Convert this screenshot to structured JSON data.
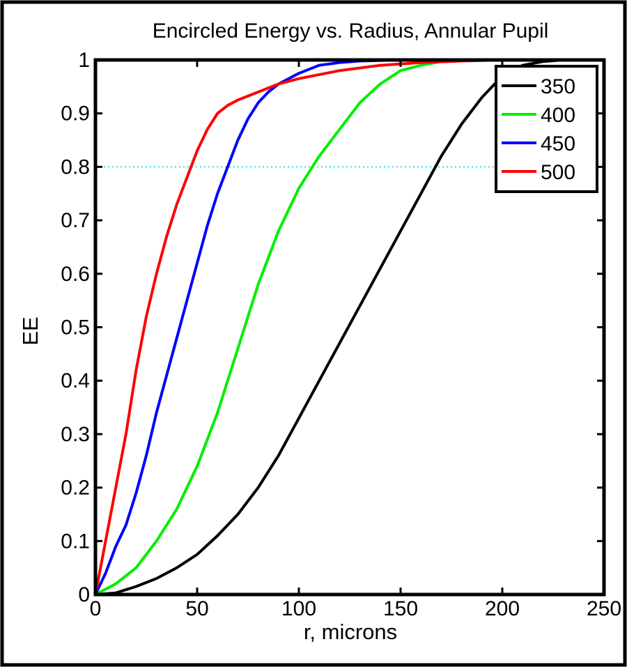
{
  "chart_data": {
    "type": "line",
    "title": "Encircled Energy vs. Radius, Annular Pupil",
    "xlabel": "r, microns",
    "ylabel": "EE",
    "xlim": [
      0,
      250
    ],
    "ylim": [
      0,
      1
    ],
    "xticks": [
      "0",
      "50",
      "100",
      "150",
      "200",
      "250"
    ],
    "yticks": [
      "0",
      "0.1",
      "0.2",
      "0.3",
      "0.4",
      "0.5",
      "0.6",
      "0.7",
      "0.8",
      "0.9",
      "1"
    ],
    "grid": false,
    "legend_position": "top-right",
    "reference_line": {
      "y": 0.8,
      "color": "#33dddd",
      "style": "dotted"
    },
    "series": [
      {
        "name": "350",
        "color": "#000000",
        "x": [
          0,
          10,
          20,
          30,
          40,
          50,
          60,
          70,
          80,
          90,
          100,
          110,
          120,
          130,
          140,
          150,
          160,
          170,
          180,
          190,
          200,
          210,
          220,
          230,
          240,
          250
        ],
        "y": [
          0,
          0.003,
          0.015,
          0.03,
          0.05,
          0.075,
          0.11,
          0.15,
          0.2,
          0.26,
          0.33,
          0.4,
          0.47,
          0.54,
          0.61,
          0.68,
          0.75,
          0.82,
          0.88,
          0.93,
          0.97,
          0.99,
          0.997,
          1.0,
          1.0,
          1.0
        ]
      },
      {
        "name": "400",
        "color": "#00ee00",
        "x": [
          0,
          10,
          20,
          30,
          40,
          50,
          60,
          70,
          80,
          90,
          100,
          110,
          120,
          130,
          140,
          150,
          160,
          170,
          180,
          200,
          220,
          250
        ],
        "y": [
          0,
          0.02,
          0.05,
          0.1,
          0.16,
          0.24,
          0.34,
          0.46,
          0.58,
          0.68,
          0.76,
          0.82,
          0.87,
          0.92,
          0.955,
          0.98,
          0.99,
          0.997,
          1.0,
          1.0,
          1.0,
          1.0
        ]
      },
      {
        "name": "450",
        "color": "#0000ff",
        "x": [
          0,
          5,
          10,
          15,
          20,
          25,
          30,
          35,
          40,
          45,
          50,
          55,
          60,
          65,
          70,
          75,
          80,
          85,
          90,
          100,
          110,
          120,
          130,
          150,
          200,
          250
        ],
        "y": [
          0,
          0.04,
          0.09,
          0.13,
          0.19,
          0.26,
          0.34,
          0.41,
          0.48,
          0.55,
          0.62,
          0.69,
          0.75,
          0.8,
          0.85,
          0.89,
          0.92,
          0.94,
          0.955,
          0.975,
          0.99,
          0.995,
          0.998,
          1.0,
          1.0,
          1.0
        ]
      },
      {
        "name": "500",
        "color": "#ff0000",
        "x": [
          0,
          5,
          10,
          15,
          20,
          25,
          30,
          35,
          40,
          45,
          50,
          55,
          60,
          65,
          70,
          80,
          90,
          100,
          120,
          140,
          160,
          180,
          200,
          250
        ],
        "y": [
          0,
          0.1,
          0.2,
          0.3,
          0.42,
          0.52,
          0.6,
          0.67,
          0.73,
          0.78,
          0.83,
          0.87,
          0.9,
          0.915,
          0.925,
          0.94,
          0.955,
          0.965,
          0.98,
          0.99,
          0.995,
          0.998,
          1.0,
          1.0
        ]
      }
    ]
  }
}
